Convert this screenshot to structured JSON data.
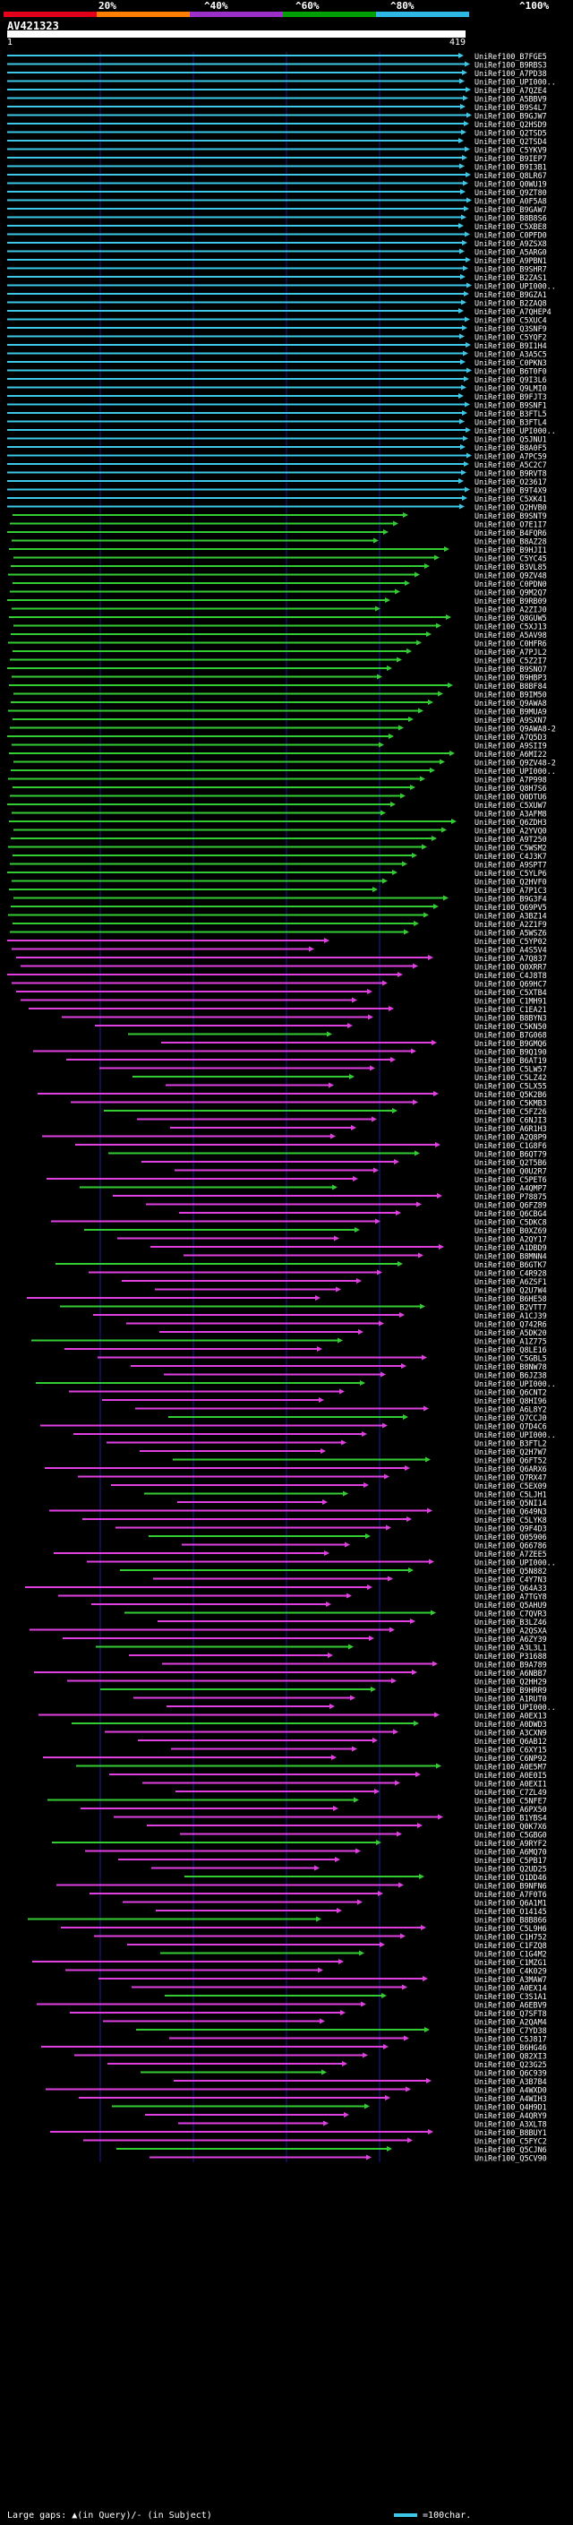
{
  "scale": {
    "ticks": [
      "20%",
      "^40%",
      "^60%",
      "^80%",
      "^100%"
    ],
    "colors": [
      "#e3001b",
      "#ff8000",
      "#9b30c8",
      "#00a000",
      "#2fb8e6"
    ]
  },
  "query": {
    "title": "AV421323",
    "start": "1",
    "end": "419"
  },
  "colors": {
    "cyan": "#3ec8e8",
    "green": "#33cc33",
    "magenta": "#e040e0",
    "gridline": "#1a1aa0"
  },
  "hits": [
    "UniRef100_B7FGE5",
    "UniRef100_B9RBS3",
    "UniRef100_A7PD38",
    "UniRef100_UPI000..",
    "UniRef100_A7QZE4",
    "UniRef100_A5BBV9",
    "UniRef100_B9S4L7",
    "UniRef100_B9GJW7",
    "UniRef100_Q2HSD9",
    "UniRef100_Q2TSD5",
    "UniRef100_Q2TSD4",
    "UniRef100_C5YKV9",
    "UniRef100_B9IEP7",
    "UniRef100_B9I3B1",
    "UniRef100_Q8LR67",
    "UniRef100_Q0WU19",
    "UniRef100_Q9ZT80",
    "UniRef100_A0F5A8",
    "UniRef100_B9GAW7",
    "UniRef100_B8B8S6",
    "UniRef100_C5XBE8",
    "UniRef100_C0PFD0",
    "UniRef100_A9ZSX8",
    "UniRef100_A5ARG0",
    "UniRef100_A9PBN1",
    "UniRef100_B9SHR7",
    "UniRef100_B2ZAS1",
    "UniRef100_UPI000..",
    "UniRef100_B9GZA1",
    "UniRef100_B2ZAQ8",
    "UniRef100_A7QHEP4",
    "UniRef100_C5XUC4",
    "UniRef100_Q3SNF9",
    "UniRef100_C5YQF2",
    "UniRef100_B9I1H4",
    "UniRef100_A3A5C5",
    "UniRef100_C0PKN3",
    "UniRef100_B6T0F0",
    "UniRef100_Q9I3L6",
    "UniRef100_Q9LMI0",
    "UniRef100_B9FJT3",
    "UniRef100_B9SNF1",
    "UniRef100_B3FTL5",
    "UniRef100_B3FTL4",
    "UniRef100_UPI000..",
    "UniRef100_Q5JNU1",
    "UniRef100_B8A0F5",
    "UniRef100_A7PC59",
    "UniRef100_A5C2C7",
    "UniRef100_B9RVT8",
    "UniRef100_O23617",
    "UniRef100_B9T4X9",
    "UniRef100_C5XK41",
    "UniRef100_Q2HVB0",
    "UniRef100_B9SNT9",
    "UniRef100_O7E1I7",
    "UniRef100_B4FQR6",
    "UniRef100_B8AZ28",
    "UniRef100_B9HJI1",
    "UniRef100_C5YC45",
    "UniRef100_B3VL85",
    "UniRef100_Q9ZV48",
    "UniRef100_C0PDN0",
    "UniRef100_Q9M2Q7",
    "UniRef100_B9RB09",
    "UniRef100_A2ZIJ0",
    "UniRef100_Q8GUW5",
    "UniRef100_C5XJ13",
    "UniRef100_A5AV98",
    "UniRef100_C0HFR6",
    "UniRef100_A7PJL2",
    "UniRef100_C5Z2I7",
    "UniRef100_B9SNO7",
    "UniRef100_B9HBP3",
    "UniRef100_B8BF84",
    "UniRef100_B9IM50",
    "UniRef100_Q9AWA8",
    "UniRef100_B9MUA9",
    "UniRef100_A9SXN7",
    "UniRef100_Q9AWA8-2",
    "UniRef100_A7Q5D3",
    "UniRef100_A9SII9",
    "UniRef100_A6MI22",
    "UniRef100_Q9ZV48-2",
    "UniRef100_UPI000..",
    "UniRef100_A7P998",
    "UniRef100_Q8H7S6",
    "UniRef100_Q0DTU6",
    "UniRef100_C5XUW7",
    "UniRef100_A3AFM8",
    "UniRef100_Q6ZDH3",
    "UniRef100_A2YVQ0",
    "UniRef100_A9T250",
    "UniRef100_C5WSM2",
    "UniRef100_C4J3K7",
    "UniRef100_A9SPT7",
    "UniRef100_C5YLP6",
    "UniRef100_Q2HVF0",
    "UniRef100_A7P1C3",
    "UniRef100_B9G3F4",
    "UniRef100_Q69PV5",
    "UniRef100_A3BZ14",
    "UniRef100_A2Z1F9",
    "UniRef100_A5WSZ6",
    "UniRef100_C5YP02",
    "UniRef100_A4S5V4",
    "UniRef100_A7Q837",
    "UniRef100_Q0XRR7",
    "UniRef100_C4J8T8",
    "UniRef100_Q69HC7",
    "UniRef100_C5XTB4",
    "UniRef100_C1MH91",
    "UniRef100_C1EA21",
    "UniRef100_B8BYN3",
    "UniRef100_C5KN50",
    "UniRef100_B7G068",
    "UniRef100_B9GMQ6",
    "UniRef100_B9Q190",
    "UniRef100_B6AT19",
    "UniRef100_C5LW57",
    "UniRef100_C5LZ42",
    "UniRef100_C5LX55",
    "UniRef100_Q5K2B6",
    "UniRef100_C5KMB3",
    "UniRef100_C5FZ26",
    "UniRef100_C6NJI3",
    "UniRef100_A6R1H3",
    "UniRef100_A2Q8P9",
    "UniRef100_C1G8F6",
    "UniRef100_B6QT79",
    "UniRef100_Q2T5B6",
    "UniRef100_Q0U2R7",
    "UniRef100_C5PET6",
    "UniRef100_A4QMP7",
    "UniRef100_P78875",
    "UniRef100_Q6FZ89",
    "UniRef100_Q6CBG4",
    "UniRef100_C5DKC8",
    "UniRef100_B0XZ69",
    "UniRef100_A2QY17",
    "UniRef100_A1DBD9",
    "UniRef100_B8MNN4",
    "UniRef100_B6GTK7",
    "UniRef100_C4R928",
    "UniRef100_A6ZSF1",
    "UniRef100_Q2U7W4",
    "UniRef100_B6HE58",
    "UniRef100_B2VTT7",
    "UniRef100_A1CJ39",
    "UniRef100_Q742R6",
    "UniRef100_A5DK20",
    "UniRef100_A1Z775",
    "UniRef100_Q8LE16",
    "UniRef100_C5GBL5",
    "UniRef100_B8NW78",
    "UniRef100_B6JZ38",
    "UniRef100_UPI000..",
    "UniRef100_Q6CNT2",
    "UniRef100_Q8HI96",
    "UniRef100_A6L8Y2",
    "UniRef100_Q7CCJ0",
    "UniRef100_Q7D4C6",
    "UniRef100_UPI000..",
    "UniRef100_B3FTL2",
    "UniRef100_Q2H7W7",
    "UniRef100_Q6FT52",
    "UniRef100_Q6ARX6",
    "UniRef100_Q7RX47",
    "UniRef100_C5EX09",
    "UniRef100_C5LJH1",
    "UniRef100_Q5NI14",
    "UniRef100_Q649N3",
    "UniRef100_C5LYK8",
    "UniRef100_Q9F4D3",
    "UniRef100_Q05906",
    "UniRef100_Q66786",
    "UniRef100_A7ZEE5",
    "UniRef100_UPI000..",
    "UniRef100_Q5N882",
    "UniRef100_C4Y7N3",
    "UniRef100_Q64A33",
    "UniRef100_A7TGY8",
    "UniRef100_Q5AHU9",
    "UniRef100_C7QVR3",
    "UniRef100_B3LZ46",
    "UniRef100_A2QSXA",
    "UniRef100_A6ZY39",
    "UniRef100_A3L3L1",
    "UniRef100_P31688",
    "UniRef100_B9A789",
    "UniRef100_A6NBB7",
    "UniRef100_Q2HH29",
    "UniRef100_B9HRR9",
    "UniRef100_A1RUT0",
    "UniRef100_UPI000..",
    "UniRef100_A0EX13",
    "UniRef100_A0DWD3",
    "UniRef100_A3CXN9",
    "UniRef100_Q6AB12",
    "UniRef100_C6XY15",
    "UniRef100_C6NP92",
    "UniRef100_A0E5M7",
    "UniRef100_A0E0I5",
    "UniRef100_A0EXI1",
    "UniRef100_C7ZL49",
    "UniRef100_C5NFE7",
    "UniRef100_A6PX50",
    "UniRef100_B1YBS4",
    "UniRef100_Q0K7X6",
    "UniRef100_C5GBG0",
    "UniRef100_A9RYF2",
    "UniRef100_A6MQ70",
    "UniRef100_C5PB17",
    "UniRef100_Q2UD25",
    "UniRef100_Q1DD46",
    "UniRef100_B9NFN6",
    "UniRef100_A7F0T6",
    "UniRef100_Q6A1M1",
    "UniRef100_O14145",
    "UniRef100_B8B866",
    "UniRef100_C5L9H6",
    "UniRef100_C1H752",
    "UniRef100_C1FZQ8",
    "UniRef100_C1G4M2",
    "UniRef100_C1MZG1",
    "UniRef100_C4K029",
    "UniRef100_A3MAW7",
    "UniRef100_A0EX14",
    "UniRef100_C3S1A1",
    "UniRef100_A6EBV9",
    "UniRef100_Q7SFT8",
    "UniRef100_A2QAM4",
    "UniRef100_C7YD38",
    "UniRef100_C5J817",
    "UniRef100_B6HG46",
    "UniRef100_Q82XI3",
    "UniRef100_Q23G25",
    "UniRef100_Q6C939",
    "UniRef100_A3B7B4",
    "UniRef100_A4WXD0",
    "UniRef100_A4WIH3",
    "UniRef100_Q4H9D1",
    "UniRef100_A4QRY9",
    "UniRef100_A3XLT8",
    "UniRef100_B8BUY1",
    "UniRef100_C5FYC2",
    "UniRef100_Q5CJN6",
    "UniRef100_Q5CV90"
  ],
  "legend": {
    "left": "Large gaps: ▲(in Query)/- (in Subject)",
    "right": "=100char."
  }
}
